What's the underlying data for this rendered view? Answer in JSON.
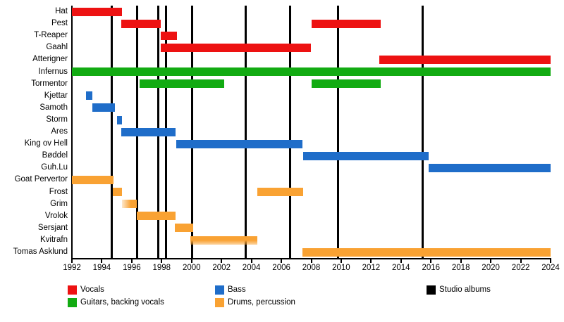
{
  "chart_data": {
    "type": "bar",
    "subtype": "gantt-timeline",
    "title": "",
    "x_axis": {
      "min": 1992,
      "max": 2024,
      "tick_step": 2,
      "tick_labels": [
        "1992",
        "1994",
        "1996",
        "1998",
        "2000",
        "2002",
        "2004",
        "2006",
        "2008",
        "2010",
        "2012",
        "2014",
        "2016",
        "2018",
        "2020",
        "2022",
        "2024"
      ]
    },
    "roles": {
      "vocals": {
        "label": "Vocals",
        "color": "#ed1212"
      },
      "guitars": {
        "label": "Guitars, backing vocals",
        "color": "#12ab12"
      },
      "bass": {
        "label": "Bass",
        "color": "#1f6dc9"
      },
      "drums": {
        "label": "Drums, percussion",
        "color": "#f9a233"
      },
      "albums": {
        "label": "Studio albums",
        "color": "#000000"
      }
    },
    "members": [
      {
        "name": "Hat",
        "role": "vocals",
        "spans": [
          [
            1992,
            1995.35
          ]
        ]
      },
      {
        "name": "Pest",
        "role": "vocals",
        "spans": [
          [
            1995.3,
            1997.95
          ],
          [
            2008,
            2012.65
          ]
        ]
      },
      {
        "name": "T-Reaper",
        "role": "vocals",
        "spans": [
          [
            1997.95,
            1999
          ]
        ]
      },
      {
        "name": "Gaahl",
        "role": "vocals",
        "spans": [
          [
            1997.95,
            2008
          ]
        ]
      },
      {
        "name": "Atterigner",
        "role": "vocals",
        "spans": [
          [
            2012.55,
            2024
          ]
        ]
      },
      {
        "name": "Infernus",
        "role": "guitars",
        "spans": [
          [
            1992,
            2024
          ]
        ]
      },
      {
        "name": "Tormentor",
        "role": "guitars",
        "spans": [
          [
            1996.5,
            2002.2
          ],
          [
            2008,
            2012.65
          ]
        ]
      },
      {
        "name": "Kjettar",
        "role": "bass",
        "spans": [
          [
            1992.95,
            1993.35
          ]
        ]
      },
      {
        "name": "Samoth",
        "role": "bass",
        "spans": [
          [
            1993.35,
            1994.9
          ]
        ]
      },
      {
        "name": "Storm",
        "role": "bass",
        "spans": [
          [
            1995,
            1995.35
          ]
        ]
      },
      {
        "name": "Ares",
        "role": "bass",
        "spans": [
          [
            1995.3,
            1998.95
          ]
        ]
      },
      {
        "name": "King ov Hell",
        "role": "bass",
        "spans": [
          [
            1998.95,
            2007.4
          ]
        ]
      },
      {
        "name": "Bøddel",
        "role": "bass",
        "spans": [
          [
            2007.45,
            2015.85
          ]
        ]
      },
      {
        "name": "Guh.Lu",
        "role": "bass",
        "spans": [
          [
            2015.85,
            2024
          ]
        ]
      },
      {
        "name": "Goat Pervertor",
        "role": "drums",
        "spans": [
          [
            1992,
            1994.8
          ]
        ]
      },
      {
        "name": "Frost",
        "role": "drums",
        "spans": [
          [
            1994.75,
            1995.35
          ],
          [
            2004.4,
            2007.45
          ]
        ]
      },
      {
        "name": "Grim",
        "role": "drums",
        "spans": [
          [
            1995.35,
            1996.35
          ]
        ],
        "fade": "left"
      },
      {
        "name": "Vrolok",
        "role": "drums",
        "spans": [
          [
            1996.35,
            1998.95
          ]
        ]
      },
      {
        "name": "Sersjant",
        "role": "drums",
        "spans": [
          [
            1998.9,
            2000.1
          ]
        ]
      },
      {
        "name": "Kvitrafn",
        "role": "drums",
        "spans": [
          [
            1999.9,
            2004.4
          ]
        ],
        "fade": "bottom"
      },
      {
        "name": "Tomas Asklund",
        "role": "drums",
        "spans": [
          [
            2007.4,
            2024
          ]
        ]
      }
    ],
    "album_line_years": [
      1994.65,
      1996.35,
      1997.75,
      1998.3,
      2000.05,
      2003.6,
      2006.6,
      2009.8,
      2015.45
    ],
    "legend_position": "bottom",
    "grid": "vertical-album-lines-only"
  },
  "legend": {
    "items": [
      {
        "key": "vocals"
      },
      {
        "key": "guitars"
      },
      {
        "key": "bass"
      },
      {
        "key": "drums"
      },
      {
        "key": "albums"
      }
    ]
  }
}
